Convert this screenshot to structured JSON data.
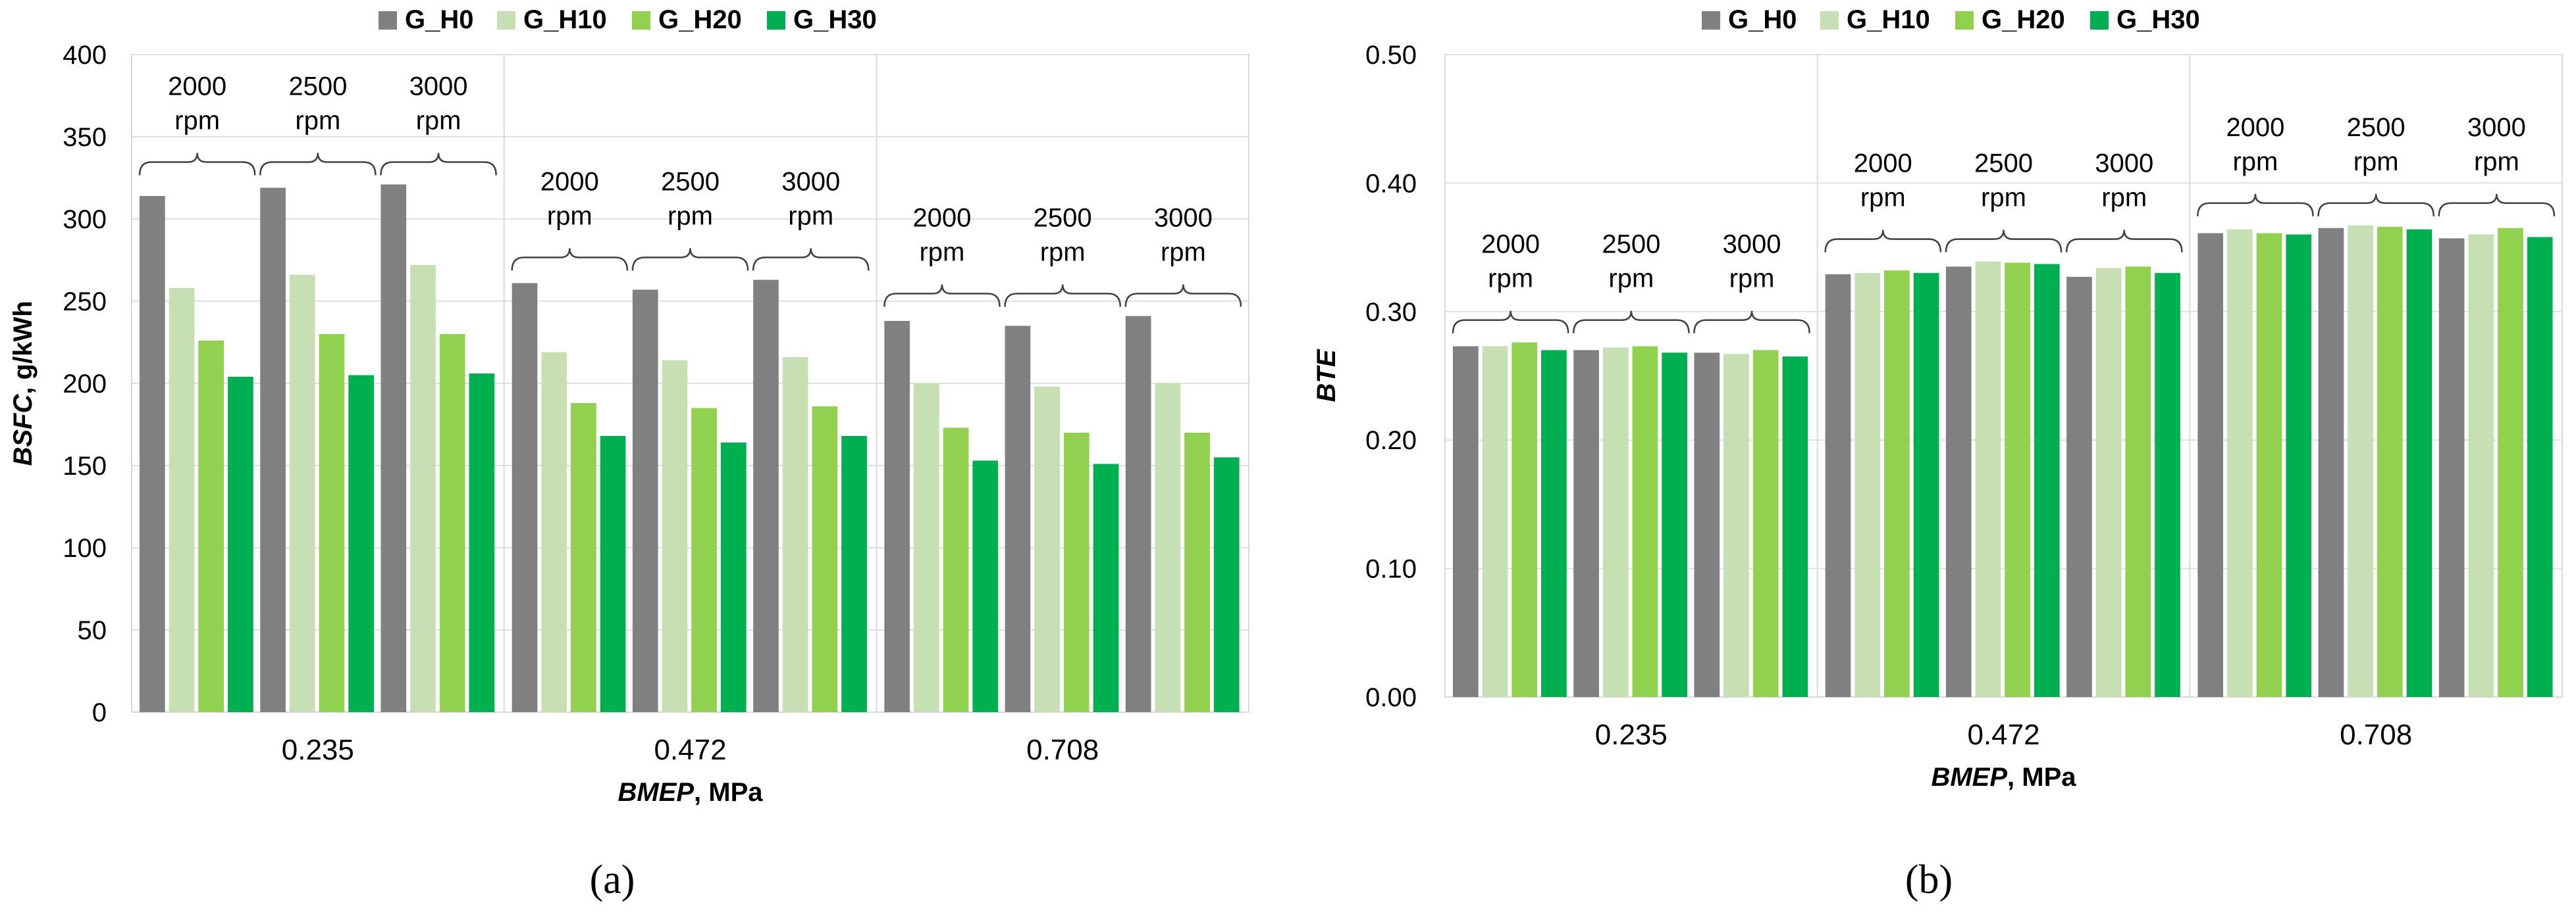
{
  "legend": [
    {
      "name": "G_H0",
      "color": "#808080"
    },
    {
      "name": "G_H10",
      "color": "#c6e0b4"
    },
    {
      "name": "G_H20",
      "color": "#92d050"
    },
    {
      "name": "G_H30",
      "color": "#00b050"
    }
  ],
  "chart_data": [
    {
      "type": "bar",
      "panel": "(a)",
      "title": "",
      "ylabel": "BSFC, g/kWh",
      "ylabel_parts": {
        "italic": "BSFC",
        "rest": ", g/kWh"
      },
      "xlabel": "BMEP, MPa",
      "xlabel_parts": {
        "italic": "BMEP",
        "rest": ", MPa"
      },
      "ylim": [
        0,
        400
      ],
      "yticks": [
        "0",
        "50",
        "100",
        "150",
        "200",
        "250",
        "300",
        "350",
        "400"
      ],
      "ytick_values": [
        0,
        50,
        100,
        150,
        200,
        250,
        300,
        350,
        400
      ],
      "categories": [
        "0.235",
        "0.472",
        "0.708"
      ],
      "speeds": [
        "2000",
        "2500",
        "3000"
      ],
      "speed_unit": "rpm",
      "series": [
        {
          "name": "G_H0",
          "values": [
            [
              314,
              319,
              321
            ],
            [
              261,
              257,
              263
            ],
            [
              238,
              235,
              241
            ]
          ]
        },
        {
          "name": "G_H10",
          "values": [
            [
              258,
              266,
              272
            ],
            [
              219,
              214,
              216
            ],
            [
              200,
              198,
              200
            ]
          ]
        },
        {
          "name": "G_H20",
          "values": [
            [
              226,
              230,
              230
            ],
            [
              188,
              185,
              186
            ],
            [
              173,
              170,
              170
            ]
          ]
        },
        {
          "name": "G_H30",
          "values": [
            [
              204,
              205,
              206
            ],
            [
              168,
              164,
              168
            ],
            [
              153,
              151,
              155
            ]
          ]
        }
      ]
    },
    {
      "type": "bar",
      "panel": "(b)",
      "title": "",
      "ylabel": "BTE",
      "ylabel_parts": {
        "italic": "BTE",
        "rest": ""
      },
      "xlabel": "BMEP, MPa",
      "xlabel_parts": {
        "italic": "BMEP",
        "rest": ", MPa"
      },
      "ylim": [
        0,
        0.5
      ],
      "yticks": [
        "0.00",
        "0.10",
        "0.20",
        "0.30",
        "0.40",
        "0.50"
      ],
      "ytick_values": [
        0,
        0.1,
        0.2,
        0.3,
        0.4,
        0.5
      ],
      "categories": [
        "0.235",
        "0.472",
        "0.708"
      ],
      "speeds": [
        "2000",
        "2500",
        "3000"
      ],
      "speed_unit": "rpm",
      "series": [
        {
          "name": "G_H0",
          "values": [
            [
              0.273,
              0.27,
              0.268
            ],
            [
              0.329,
              0.335,
              0.327
            ],
            [
              0.361,
              0.365,
              0.357
            ]
          ]
        },
        {
          "name": "G_H10",
          "values": [
            [
              0.273,
              0.272,
              0.267
            ],
            [
              0.33,
              0.339,
              0.334
            ],
            [
              0.364,
              0.367,
              0.36
            ]
          ]
        },
        {
          "name": "G_H20",
          "values": [
            [
              0.276,
              0.273,
              0.27
            ],
            [
              0.332,
              0.338,
              0.335
            ],
            [
              0.361,
              0.366,
              0.365
            ]
          ]
        },
        {
          "name": "G_H30",
          "values": [
            [
              0.27,
              0.268,
              0.265
            ],
            [
              0.33,
              0.337,
              0.33
            ],
            [
              0.36,
              0.364,
              0.358
            ]
          ]
        }
      ]
    }
  ]
}
